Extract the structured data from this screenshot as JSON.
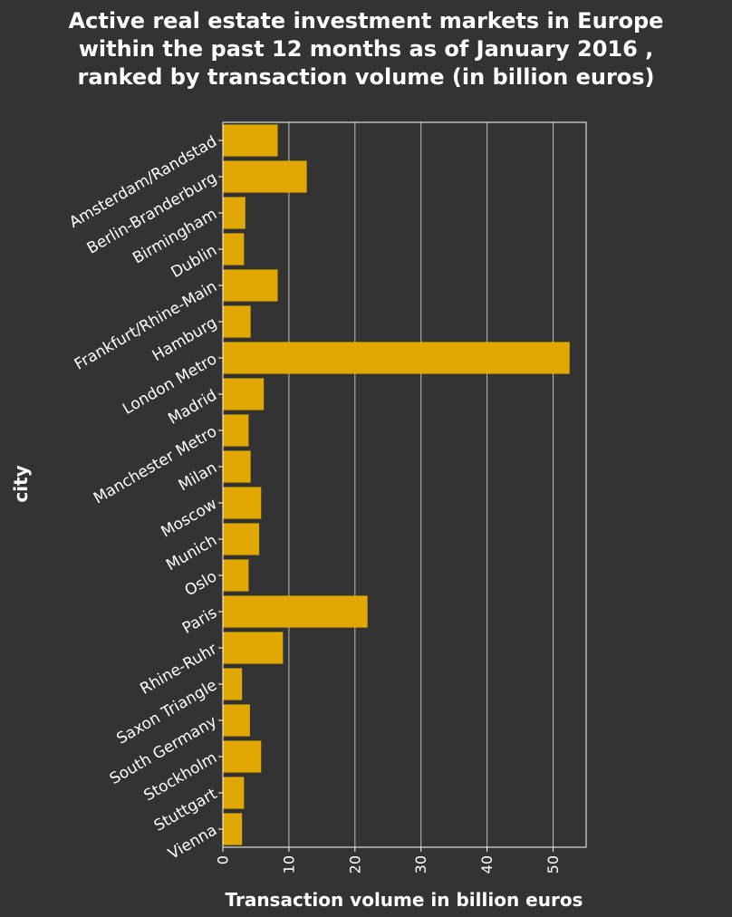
{
  "chart_data": {
    "type": "bar",
    "orientation": "horizontal",
    "title": "Active real estate investment markets in Europe within the past 12 months as of January 2016 , ranked by transaction volume (in billion euros)",
    "xlabel": "Transaction volume in billion euros",
    "ylabel": "city",
    "xlim": [
      0,
      55
    ],
    "xticks": [
      0,
      10,
      20,
      30,
      40,
      50
    ],
    "grid": "vertical",
    "bar_color": "#e0a800",
    "categories": [
      "Amsterdam/Randstad",
      "Berlin-Branderburg",
      "Birmingham",
      "Dublin",
      "Frankfurt/Rhine-Main",
      "Hamburg",
      "London Metro",
      "Madrid",
      "Manchester Metro",
      "Milan",
      "Moscow",
      "Munich",
      "Oslo",
      "Paris",
      "Rhine-Ruhr",
      "Saxon Triangle",
      "South Germany",
      "Stockholm",
      "Stuttgart",
      "Vienna"
    ],
    "values": [
      8.3,
      12.7,
      3.4,
      3.2,
      8.3,
      4.2,
      52.5,
      6.2,
      3.9,
      4.2,
      5.8,
      5.5,
      3.9,
      21.9,
      9.1,
      2.9,
      4.1,
      5.8,
      3.2,
      2.9
    ]
  }
}
